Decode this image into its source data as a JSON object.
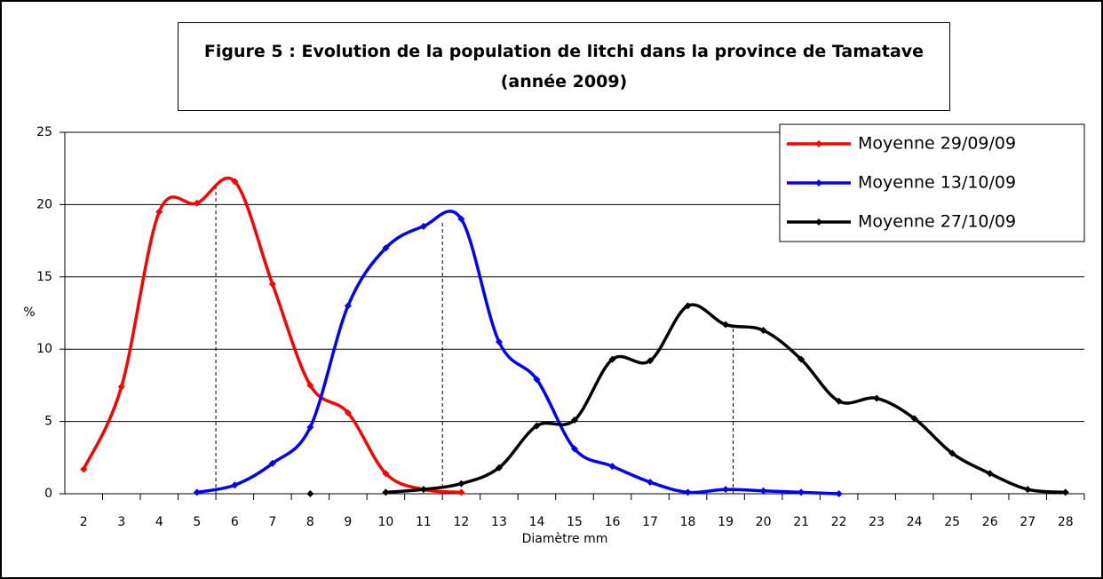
{
  "chart_data": {
    "type": "line",
    "title": "Figure 5 : Evolution de la population de litchi dans la province de Tamatave (année 2009)",
    "x_label": "Diamètre mm",
    "y_label": "%",
    "categories": [
      "2",
      "3",
      "4",
      "5",
      "6",
      "7",
      "8",
      "9",
      "10",
      "11",
      "12",
      "13",
      "14",
      "15",
      "16",
      "17",
      "18",
      "19",
      "20",
      "21",
      "22",
      "23",
      "24",
      "25",
      "26",
      "27",
      "28"
    ],
    "series": [
      {
        "name": "Moyenne 29/09/09",
        "color": "#ff0000",
        "values": [
          1.7,
          7.4,
          19.5,
          20.1,
          21.6,
          14.5,
          7.5,
          5.6,
          1.4,
          0.3,
          0.1,
          null,
          null,
          null,
          null,
          null,
          null,
          null,
          null,
          null,
          null,
          null,
          null,
          null,
          null,
          null,
          null
        ]
      },
      {
        "name": "Moyenne 13/10/09",
        "color": "#0000ff",
        "values": [
          null,
          null,
          null,
          0.1,
          0.6,
          2.1,
          4.6,
          13,
          17,
          18.5,
          19,
          10.5,
          7.9,
          3.1,
          1.9,
          0.8,
          0.1,
          0.3,
          0.2,
          0.1,
          0,
          null,
          null,
          null,
          null,
          null,
          null
        ]
      },
      {
        "name": "Moyenne 27/10/09",
        "color": "#000000",
        "values": [
          null,
          null,
          null,
          null,
          null,
          null,
          0,
          null,
          0.1,
          0.3,
          0.7,
          1.8,
          4.7,
          5.1,
          9.3,
          9.2,
          13,
          11.7,
          11.3,
          9.3,
          6.4,
          6.6,
          5.2,
          2.8,
          1.4,
          0.3,
          0.1
        ]
      }
    ],
    "ylim": [
      0,
      25
    ],
    "yticks": [
      0,
      5,
      10,
      15,
      20,
      25
    ],
    "grid": true,
    "legend": "upper right"
  }
}
